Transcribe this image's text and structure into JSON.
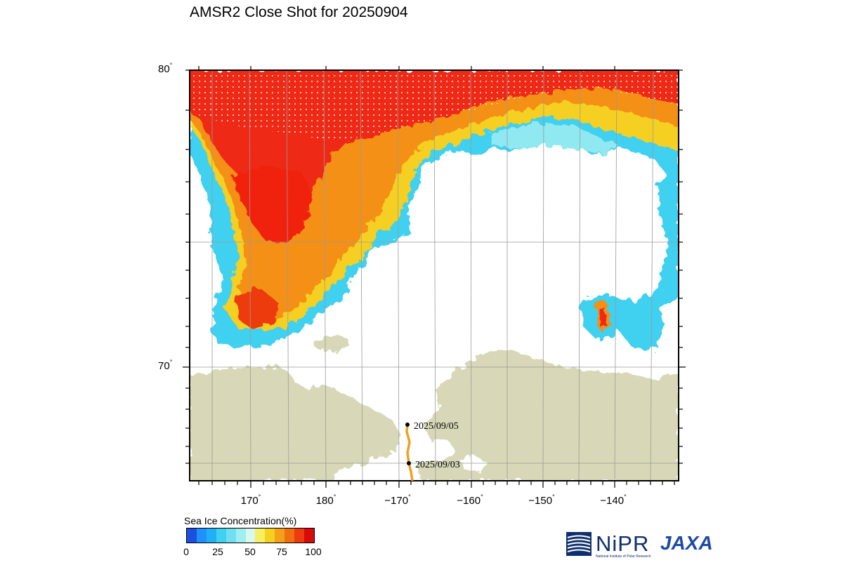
{
  "title": "AMSR2 Close Shot for 20250904",
  "map": {
    "lat_labels": [
      {
        "value": "80",
        "unit": "°"
      },
      {
        "value": "70",
        "unit": "°"
      }
    ],
    "lon_labels": [
      {
        "value": "170",
        "unit": "°"
      },
      {
        "value": "180",
        "unit": "°"
      },
      {
        "value": "−170",
        "unit": "°"
      },
      {
        "value": "−160",
        "unit": "°"
      },
      {
        "value": "−150",
        "unit": "°"
      },
      {
        "value": "−140",
        "unit": "°"
      }
    ],
    "track": {
      "color": "#f0a020",
      "labels": [
        "2025/09/05",
        "2025/09/03"
      ]
    },
    "colors": {
      "land": "#d8d8b8",
      "water": "#ffffff",
      "ice_high": "#ee2222",
      "ice_mid": "#f5d020",
      "ice_low": "#40d0f0"
    }
  },
  "colorbar": {
    "title": "Sea Ice Concentration(%)",
    "ticks": [
      "0",
      "25",
      "50",
      "75",
      "100"
    ],
    "colors": [
      "#1a4fe0",
      "#1e90ff",
      "#22b0f5",
      "#40d0f0",
      "#70e0f0",
      "#a0eef0",
      "#d8f8f0",
      "#f5f060",
      "#f5d020",
      "#f5a018",
      "#f07010",
      "#ee3a10",
      "#d80a0a"
    ]
  },
  "logos": {
    "nipr": {
      "name": "NiPR",
      "subtitle": "National Institute of Polar Research"
    },
    "jaxa": {
      "name": "JAXA"
    }
  }
}
